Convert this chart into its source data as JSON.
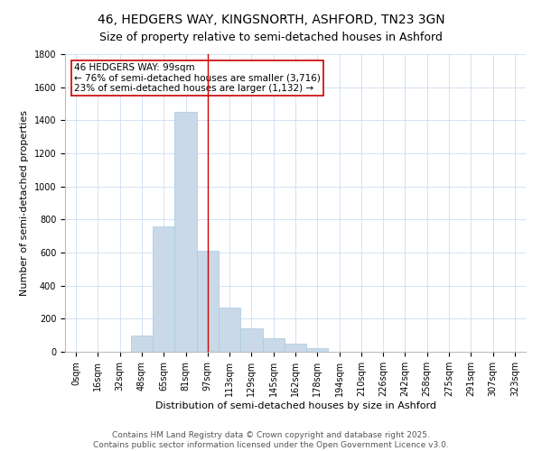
{
  "title": "46, HEDGERS WAY, KINGSNORTH, ASHFORD, TN23 3GN",
  "subtitle": "Size of property relative to semi-detached houses in Ashford",
  "xlabel": "Distribution of semi-detached houses by size in Ashford",
  "ylabel": "Number of semi-detached properties",
  "categories": [
    "0sqm",
    "16sqm",
    "32sqm",
    "48sqm",
    "65sqm",
    "81sqm",
    "97sqm",
    "113sqm",
    "129sqm",
    "145sqm",
    "162sqm",
    "178sqm",
    "194sqm",
    "210sqm",
    "226sqm",
    "242sqm",
    "258sqm",
    "275sqm",
    "291sqm",
    "307sqm",
    "323sqm"
  ],
  "values": [
    0,
    0,
    0,
    100,
    760,
    1450,
    610,
    270,
    140,
    80,
    50,
    20,
    0,
    0,
    0,
    0,
    0,
    0,
    0,
    0,
    0
  ],
  "bar_color": "#c9d9e8",
  "bar_edge_color": "#a8c8e0",
  "property_line_x": 6,
  "property_line_color": "#cc0000",
  "annotation_text": "46 HEDGERS WAY: 99sqm\n← 76% of semi-detached houses are smaller (3,716)\n23% of semi-detached houses are larger (1,132) →",
  "annotation_box_color": "#cc0000",
  "ylim": [
    0,
    1800
  ],
  "yticks": [
    0,
    200,
    400,
    600,
    800,
    1000,
    1200,
    1400,
    1600,
    1800
  ],
  "grid_color": "#ccddf0",
  "background_color": "#ffffff",
  "footer_line1": "Contains HM Land Registry data © Crown copyright and database right 2025.",
  "footer_line2": "Contains public sector information licensed under the Open Government Licence v3.0.",
  "title_fontsize": 10,
  "subtitle_fontsize": 9,
  "axis_label_fontsize": 8,
  "tick_fontsize": 7,
  "annotation_fontsize": 7.5,
  "footer_fontsize": 6.5
}
